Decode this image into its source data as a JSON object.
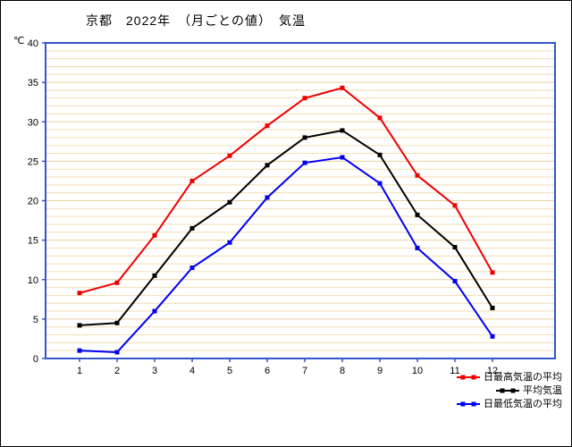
{
  "title": "京都　2022年　（月ごとの値）　気温",
  "y_axis_unit": "℃",
  "chart_data": {
    "type": "line",
    "x": [
      1,
      2,
      3,
      4,
      5,
      6,
      7,
      8,
      9,
      10,
      11,
      12
    ],
    "series": [
      {
        "name": "日最高気温の平均",
        "color": "#ee0000",
        "values": [
          8.3,
          9.6,
          15.6,
          22.5,
          25.7,
          29.5,
          33.0,
          34.3,
          30.5,
          23.2,
          19.4,
          10.9
        ]
      },
      {
        "name": "平均気温",
        "color": "#000000",
        "values": [
          4.2,
          4.5,
          10.5,
          16.5,
          19.8,
          24.5,
          28.0,
          28.9,
          25.8,
          18.2,
          14.1,
          6.4
        ]
      },
      {
        "name": "日最低気温の平均",
        "color": "#0000ee",
        "values": [
          1.0,
          0.8,
          6.0,
          11.5,
          14.7,
          20.4,
          24.8,
          25.5,
          22.2,
          14.0,
          9.8,
          2.8
        ]
      }
    ],
    "ylim": [
      0,
      40
    ],
    "y_tick_step": 5,
    "grid": "horizontal, minor every 1°C",
    "legend_position": "bottom-right",
    "colors": {
      "plot_border": "#3355cc",
      "grid_minor": "#f2ddb2",
      "grid_major": "#e9cf9c",
      "tick": "#3355cc"
    }
  }
}
